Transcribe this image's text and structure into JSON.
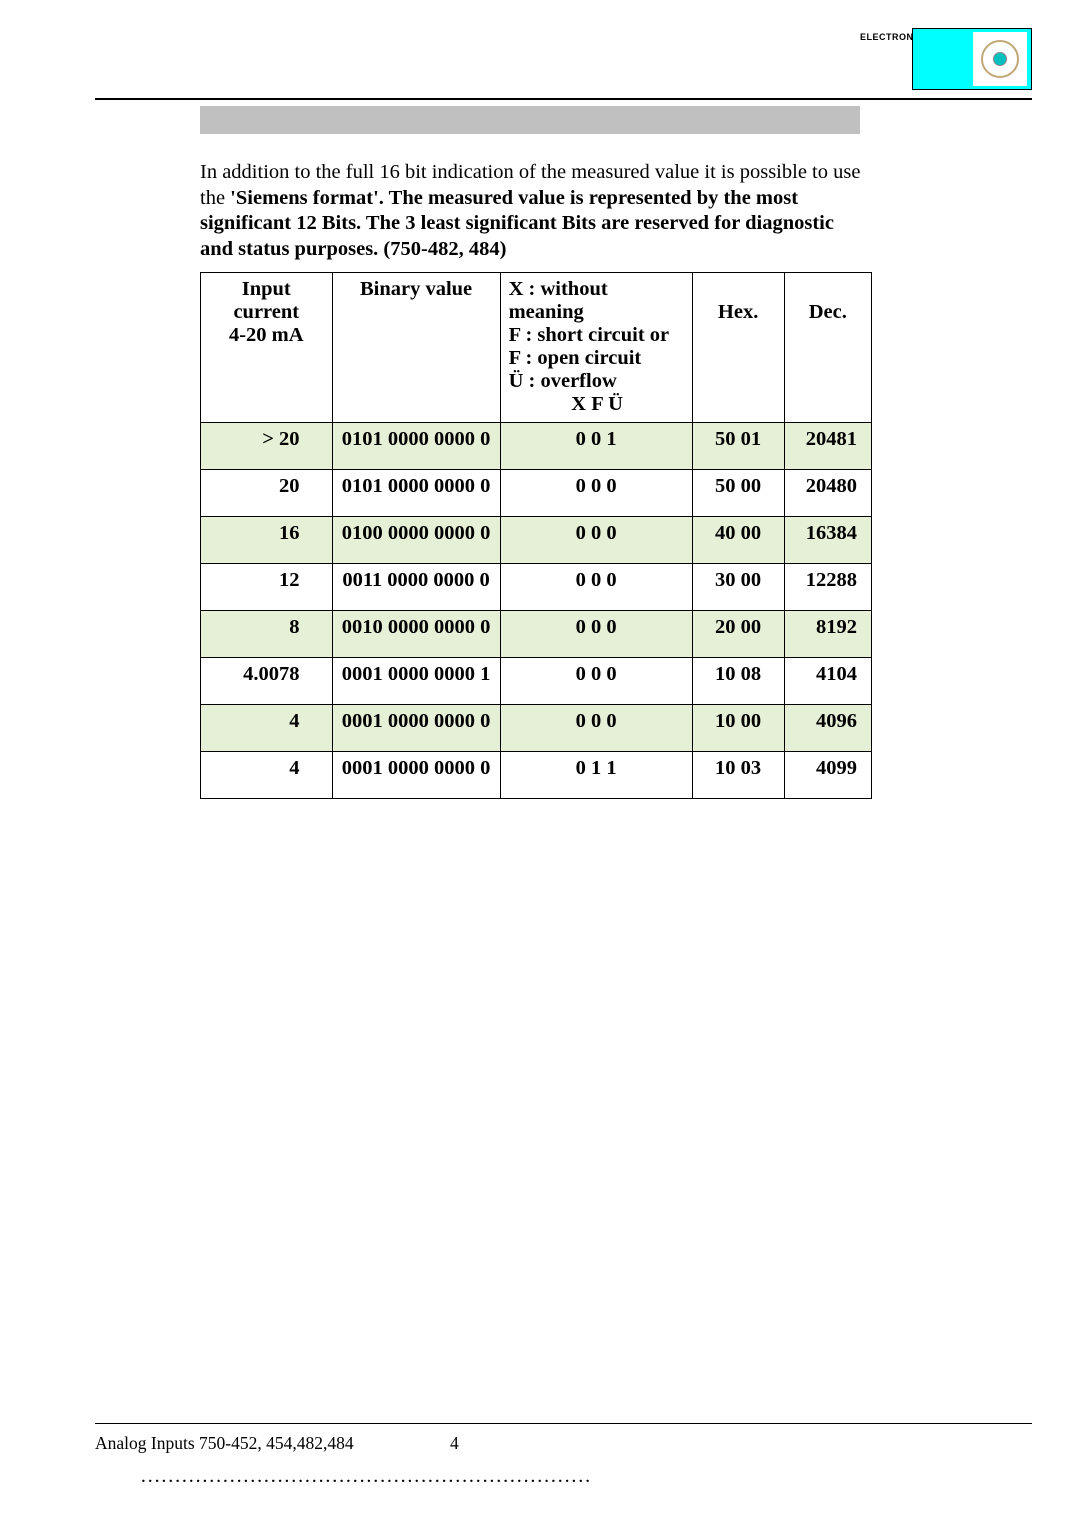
{
  "logo": {
    "label": "ELECTRONIC"
  },
  "intro": {
    "line1": "In addition to the full 16 bit indication of the measured value it is possible to use the",
    "bold_lines": "'Siemens format'. The measured value is represented by the most significant 12 Bits. The 3 least significant Bits are reserved for diagnostic and status purposes. (750-482, 484)"
  },
  "table": {
    "headers": {
      "input_l1": "Input current",
      "input_l2": "4-20 mA",
      "binary": "Binary value",
      "xfu_l1": "X : without meaning",
      "xfu_l2": "F :  short circuit or",
      "xfu_l3": "F :  open circuit",
      "xfu_l4": "Ü : overflow",
      "xfu_l5": "X F Ü",
      "hex": "Hex.",
      "dec": "Dec."
    },
    "rows": [
      {
        "input": "> 20",
        "binary": "0101 0000 0000 0",
        "xfu": "0 0 1",
        "hex": "50 01",
        "dec": "20481",
        "green": true
      },
      {
        "input": "20",
        "binary": "0101 0000 0000 0",
        "xfu": "0 0 0",
        "hex": "50 00",
        "dec": "20480",
        "green": false
      },
      {
        "input": "16",
        "binary": "0100 0000 0000 0",
        "xfu": "0 0 0",
        "hex": "40 00",
        "dec": "16384",
        "green": true
      },
      {
        "input": "12",
        "binary": "0011 0000 0000 0",
        "xfu": "0 0 0",
        "hex": "30 00",
        "dec": "12288",
        "green": false
      },
      {
        "input": "8",
        "binary": "0010 0000 0000 0",
        "xfu": "0 0 0",
        "hex": "20 00",
        "dec": "8192",
        "green": true
      },
      {
        "input": "4.0078",
        "binary": "0001 0000 0000 1",
        "xfu": "0 0 0",
        "hex": "10 08",
        "dec": "4104",
        "green": false
      },
      {
        "input": "4",
        "binary": "0001 0000 0000 0",
        "xfu": "0 0 0",
        "hex": "10 00",
        "dec": "4096",
        "green": true
      },
      {
        "input": "4",
        "binary": "0001 0000 0000 0",
        "xfu": "0 1 1",
        "hex": "10 03",
        "dec": "4099",
        "green": false
      }
    ]
  },
  "footer": {
    "left": "Analog Inputs 750-452, 454,482,484",
    "page": "4",
    "dots": "…………………………………………………………"
  }
}
